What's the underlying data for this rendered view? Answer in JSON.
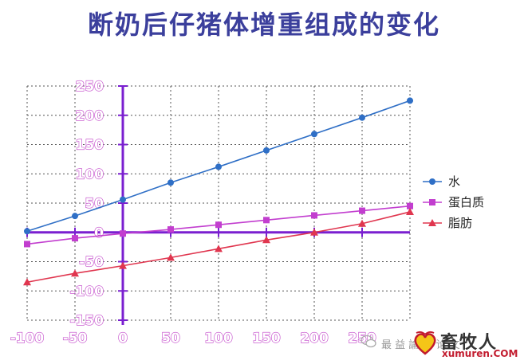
{
  "title": "断奶后仔猪体增重组成的变化",
  "chart_data": {
    "type": "line",
    "title": "断奶后仔猪体增重组成的变化",
    "x": [
      -100,
      -50,
      0,
      50,
      100,
      150,
      200,
      250,
      300
    ],
    "xticks": [
      "-100",
      "-50",
      "0",
      "50",
      "100",
      "150",
      "200",
      "250"
    ],
    "yticks": [
      "250",
      "200",
      "150",
      "100",
      "50",
      "0",
      "-50",
      "-100",
      "-150"
    ],
    "xlim": [
      -100,
      300
    ],
    "ylim": [
      -150,
      250
    ],
    "grid": true,
    "legend_position": "right",
    "series": [
      {
        "name": "水",
        "color": "#2f6fc6",
        "marker": "circle",
        "values": [
          2,
          28,
          56,
          85,
          112,
          140,
          168,
          196,
          225
        ]
      },
      {
        "name": "蛋白质",
        "color": "#c23ecf",
        "marker": "square",
        "values": [
          -20,
          -10,
          -2,
          5,
          13,
          21,
          29,
          37,
          45
        ]
      },
      {
        "name": "脂肪",
        "color": "#e0364f",
        "marker": "triangle",
        "values": [
          -85,
          -70,
          -57,
          -43,
          -28,
          -13,
          0,
          15,
          35
        ]
      }
    ]
  },
  "watermark": {
    "text": "最 益 論 文 论 文",
    "brand": "畜牧人",
    "url": "xumuren.COM"
  }
}
